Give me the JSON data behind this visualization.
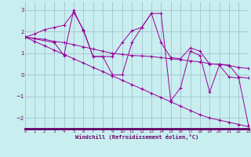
{
  "background_color": "#c8eef0",
  "grid_color": "#a0b8c8",
  "line_color": "#990099",
  "xlabel": "Windchill (Refroidissement éolien,°C)",
  "xlabel_color": "#660066",
  "xaxis_bar_color": "#660066",
  "xlim": [
    0,
    23
  ],
  "ylim": [
    -2.5,
    3.4
  ],
  "yticks": [
    -2,
    -1,
    0,
    1,
    2,
    3
  ],
  "xticks": [
    0,
    1,
    2,
    3,
    4,
    5,
    6,
    7,
    8,
    9,
    10,
    11,
    12,
    13,
    14,
    15,
    16,
    17,
    18,
    19,
    20,
    21,
    22,
    23
  ],
  "line1_x": [
    0,
    1,
    2,
    3,
    4,
    5,
    6,
    7,
    8,
    9,
    10,
    11,
    12,
    13,
    14,
    15,
    16,
    17,
    18,
    19,
    20,
    21,
    22,
    23
  ],
  "line1_y": [
    1.75,
    1.9,
    2.1,
    2.2,
    2.3,
    2.9,
    2.1,
    0.85,
    0.85,
    0.85,
    1.5,
    2.05,
    2.2,
    2.85,
    1.5,
    0.8,
    0.75,
    1.25,
    1.1,
    0.5,
    0.5,
    0.45,
    -0.1,
    -0.15
  ],
  "line2_x": [
    0,
    3,
    4,
    5,
    6,
    7,
    8,
    9,
    10,
    11,
    12,
    13,
    14,
    15,
    16,
    17,
    18,
    19,
    20,
    21,
    22,
    23
  ],
  "line2_y": [
    1.75,
    1.5,
    0.9,
    3.0,
    2.05,
    0.85,
    0.85,
    0.0,
    0.0,
    1.5,
    2.2,
    2.85,
    2.85,
    -1.2,
    -0.6,
    1.1,
    0.9,
    -0.8,
    0.45,
    -0.1,
    -0.15,
    -2.35
  ],
  "line3_x": [
    0,
    1,
    2,
    3,
    4,
    5,
    6,
    7,
    8,
    9,
    10,
    11,
    12,
    13,
    14,
    15,
    16,
    17,
    18,
    19,
    20,
    21,
    22,
    23
  ],
  "line3_y": [
    1.75,
    1.7,
    1.65,
    1.55,
    1.5,
    1.4,
    1.3,
    1.2,
    1.1,
    1.0,
    0.95,
    0.9,
    0.88,
    0.85,
    0.8,
    0.75,
    0.7,
    0.65,
    0.6,
    0.52,
    0.48,
    0.43,
    0.35,
    0.3
  ],
  "line4_x": [
    0,
    1,
    2,
    3,
    4,
    5,
    6,
    7,
    8,
    9,
    10,
    11,
    12,
    13,
    14,
    15,
    16,
    17,
    18,
    19,
    20,
    21,
    22,
    23
  ],
  "line4_y": [
    1.75,
    1.55,
    1.35,
    1.15,
    0.95,
    0.75,
    0.55,
    0.35,
    0.15,
    -0.05,
    -0.25,
    -0.45,
    -0.65,
    -0.85,
    -1.05,
    -1.25,
    -1.45,
    -1.65,
    -1.85,
    -2.0,
    -2.1,
    -2.2,
    -2.3,
    -2.4
  ]
}
